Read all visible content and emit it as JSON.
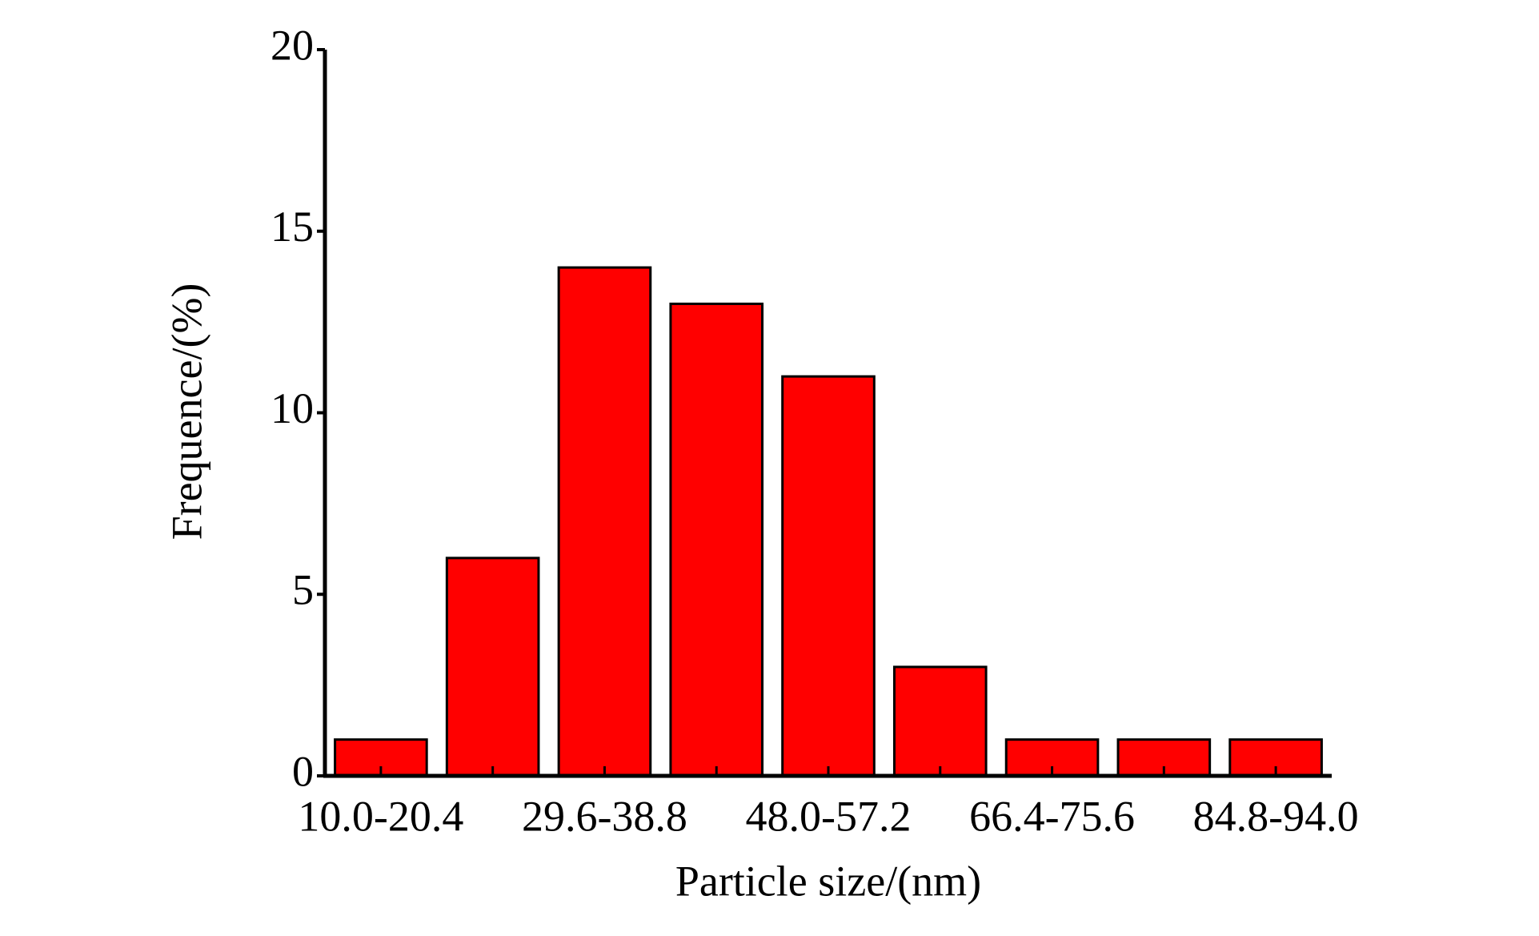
{
  "chart_data": {
    "type": "bar",
    "x_label": "Particle size/(nm)",
    "y_label": "Frequence/(%)",
    "categories": [
      "10.0-20.4",
      null,
      "29.6-38.8",
      null,
      "48.0-57.2",
      null,
      "66.4-75.6",
      null,
      "84.8-94.0"
    ],
    "values": [
      1,
      6,
      14,
      13,
      11,
      3,
      1,
      1,
      1
    ],
    "color": "#ff0000",
    "ylim": [
      0,
      20
    ],
    "yticks": [
      0,
      5,
      10,
      15,
      20
    ],
    "grid": false
  }
}
